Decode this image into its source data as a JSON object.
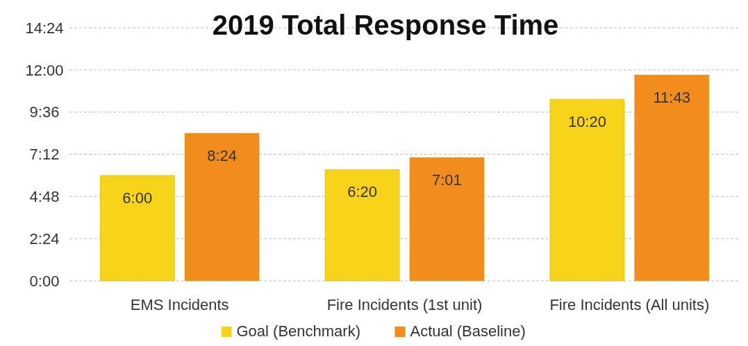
{
  "chart_data": {
    "type": "bar",
    "title": "2019 Total Response Time",
    "categories": [
      "EMS Incidents",
      "Fire Incidents (1st unit)",
      "Fire Incidents (All units)"
    ],
    "series": [
      {
        "name": "Goal (Benchmark)",
        "color": "#f7d31a",
        "values": [
          6,
          6.333,
          10.333
        ],
        "value_labels": [
          "6:00",
          "6:20",
          "10:20"
        ]
      },
      {
        "name": "Actual (Baseline)",
        "color": "#f28c1c",
        "values": [
          8.4,
          7.017,
          11.717
        ],
        "value_labels": [
          "8:24",
          "7:01",
          "11:43"
        ]
      }
    ],
    "ylim": [
      0,
      14.4
    ],
    "yticks": [
      {
        "value": 0,
        "label": "0:00"
      },
      {
        "value": 2.4,
        "label": "2:24"
      },
      {
        "value": 4.8,
        "label": "4:48"
      },
      {
        "value": 7.2,
        "label": "7:12"
      },
      {
        "value": 9.6,
        "label": "9:36"
      },
      {
        "value": 12,
        "label": "12:00"
      },
      {
        "value": 14.4,
        "label": "14:24"
      }
    ],
    "grid": "y",
    "legend": "bottom"
  }
}
